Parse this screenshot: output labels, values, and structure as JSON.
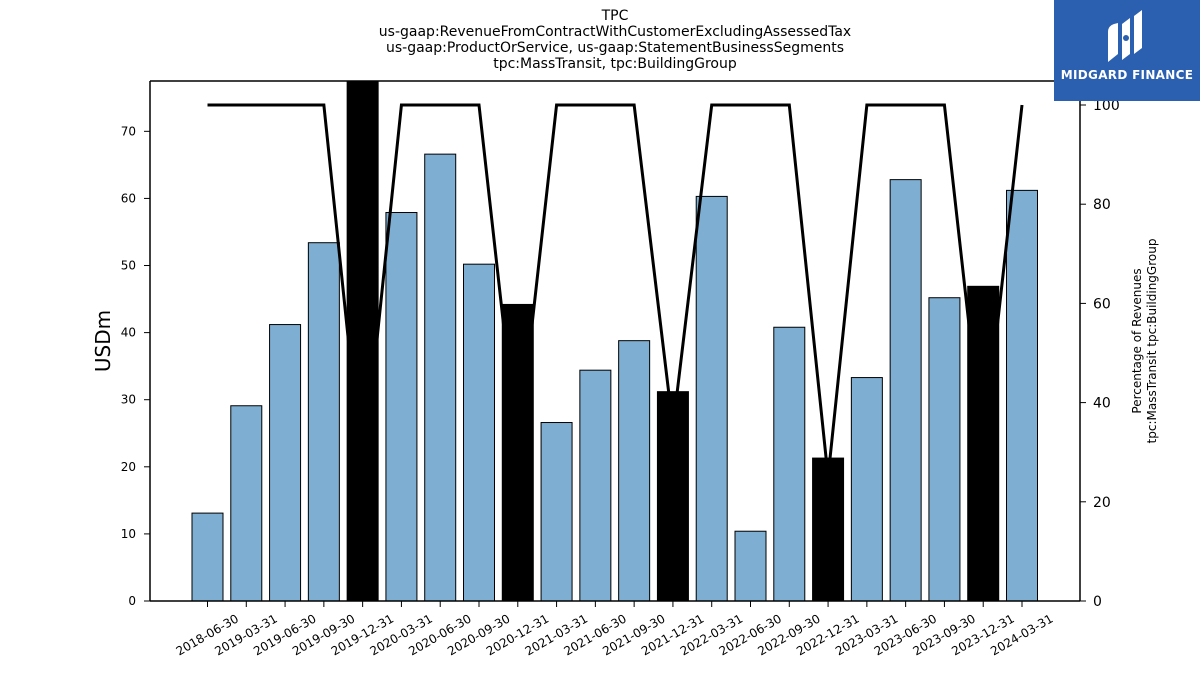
{
  "chart_data": {
    "type": "bar",
    "title_lines": [
      "TPC",
      "us-gaap:RevenueFromContractWithCustomerExcludingAssessedTax",
      "us-gaap:ProductOrService, us-gaap:StatementBusinessSegments",
      "tpc:MassTransit, tpc:BuildingGroup"
    ],
    "ylabel": "USDm",
    "ylabel_right_lines": [
      "Percentage of Revenues",
      "tpc:MassTransit tpc:BuildingGroup"
    ],
    "categories": [
      "2018-06-30",
      "2019-03-31",
      "2019-06-30",
      "2019-09-30",
      "2019-12-31",
      "2020-03-31",
      "2020-06-30",
      "2020-09-30",
      "2020-12-31",
      "2021-03-31",
      "2021-06-30",
      "2021-09-30",
      "2021-12-31",
      "2022-03-31",
      "2022-06-30",
      "2022-09-30",
      "2022-12-31",
      "2023-03-31",
      "2023-06-30",
      "2023-09-30",
      "2023-12-31",
      "2024-03-31"
    ],
    "values": [
      13.1,
      29.1,
      41.2,
      53.4,
      78.0,
      57.9,
      66.6,
      50.2,
      44.2,
      26.6,
      34.4,
      38.8,
      31.2,
      60.3,
      10.4,
      40.8,
      21.3,
      33.3,
      62.8,
      45.2,
      46.9,
      61.2
    ],
    "bar_highlight": [
      false,
      false,
      false,
      false,
      true,
      false,
      false,
      false,
      true,
      false,
      false,
      false,
      true,
      false,
      false,
      false,
      true,
      false,
      false,
      false,
      true,
      false
    ],
    "percentage_line": [
      100,
      100,
      100,
      100,
      25,
      100,
      100,
      100,
      30,
      100,
      100,
      100,
      35,
      100,
      100,
      100,
      25,
      100,
      100,
      100,
      30,
      100
    ],
    "ylim": [
      0,
      77.5
    ],
    "yticks": [
      0,
      10,
      20,
      30,
      40,
      50,
      60,
      70
    ],
    "ylim_right": [
      0,
      100
    ],
    "yticks_right": [
      0,
      20,
      40,
      60,
      80,
      100
    ],
    "colors": {
      "bar": "#7eafd3",
      "bar_highlight": "#000000",
      "line": "#000000"
    },
    "grid": false,
    "legend": "none"
  },
  "logo": {
    "text": "MIDGARD FINANCE",
    "icon": "midgard-logo-icon"
  }
}
